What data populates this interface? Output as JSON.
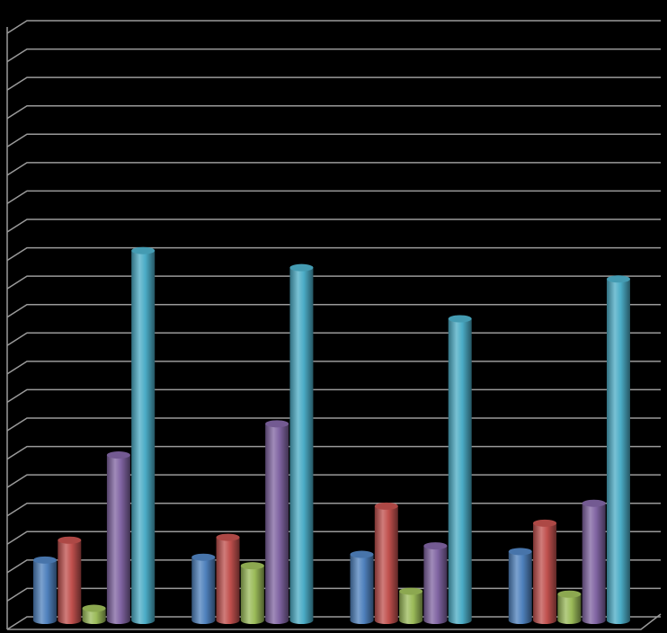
{
  "chart_data": {
    "type": "bar",
    "categories": [
      null,
      null,
      null,
      null
    ],
    "series": [
      {
        "color": "#4f81bd",
        "values": [
          2.0,
          2.1,
          2.2,
          2.3
        ]
      },
      {
        "color": "#c0504d",
        "values": [
          2.7,
          2.8,
          3.9,
          3.3
        ]
      },
      {
        "color": "#9bbb59",
        "values": [
          0.3,
          1.8,
          0.9,
          0.8
        ]
      },
      {
        "color": "#8064a2",
        "values": [
          5.7,
          6.8,
          2.5,
          4.0
        ]
      },
      {
        "color": "#4bacc6",
        "values": [
          12.9,
          12.3,
          10.5,
          11.9
        ]
      }
    ],
    "ylim": [
      0,
      21
    ],
    "yticks": [
      0,
      1,
      2,
      3,
      4,
      5,
      6,
      7,
      8,
      9,
      10,
      11,
      12,
      13,
      14,
      15,
      16,
      17,
      18,
      19,
      20,
      21
    ],
    "grid": true
  }
}
